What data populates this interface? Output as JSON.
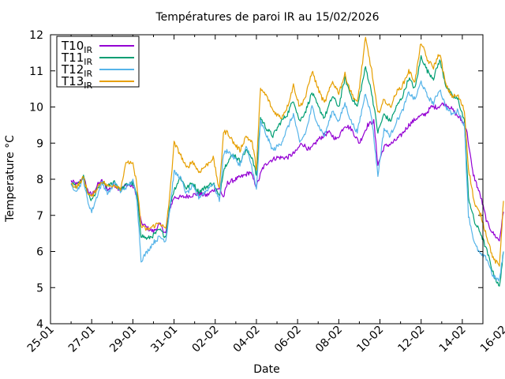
{
  "chart_data": {
    "type": "line",
    "title": "Températures de paroi IR au 15/02/2026",
    "xlabel": "Date",
    "ylabel": "Temperature °C",
    "xlim": [
      0,
      21
    ],
    "ylim": [
      4,
      12
    ],
    "x_unit": "days since 25-01",
    "x_ticks": [
      {
        "x": 0,
        "label": "25-01"
      },
      {
        "x": 2,
        "label": "27-01"
      },
      {
        "x": 4,
        "label": "29-01"
      },
      {
        "x": 6,
        "label": "31-01"
      },
      {
        "x": 8,
        "label": "02-02"
      },
      {
        "x": 10,
        "label": "04-02"
      },
      {
        "x": 12,
        "label": "06-02"
      },
      {
        "x": 14,
        "label": "08-02"
      },
      {
        "x": 16,
        "label": "10-02"
      },
      {
        "x": 18,
        "label": "12-02"
      },
      {
        "x": 20,
        "label": "14-02"
      },
      {
        "x": 22,
        "label": "16-02"
      }
    ],
    "y_ticks": [
      4,
      5,
      6,
      7,
      8,
      9,
      10,
      11,
      12
    ],
    "grid": false,
    "legend_position": "top-left",
    "series": [
      {
        "name": "T10",
        "subscript": "IR",
        "color": "#9400d3",
        "x": [
          1.0,
          1.3,
          1.6,
          1.8,
          2.0,
          2.3,
          2.5,
          2.8,
          3.1,
          3.4,
          3.7,
          4.0,
          4.2,
          4.4,
          4.7,
          5.0,
          5.3,
          5.6,
          5.8,
          6.0,
          6.4,
          6.8,
          7.2,
          7.6,
          7.9,
          8.2,
          8.4,
          8.6,
          9.0,
          9.4,
          9.7,
          10.0,
          10.3,
          10.6,
          11.0,
          11.5,
          11.9,
          12.2,
          12.6,
          13.0,
          13.5,
          13.9,
          14.3,
          14.6,
          15.0,
          15.4,
          15.7,
          15.9,
          16.2,
          16.6,
          17.0,
          17.4,
          17.8,
          18.2,
          18.5,
          18.8,
          19.1,
          19.4,
          19.7,
          20.0,
          20.2,
          20.5,
          20.9,
          21.2,
          21.5,
          21.8,
          22.0
        ],
        "values": [
          7.95,
          7.85,
          8.05,
          7.7,
          7.55,
          7.85,
          7.95,
          7.7,
          7.85,
          7.7,
          7.85,
          7.8,
          7.55,
          6.8,
          6.65,
          6.55,
          6.75,
          6.5,
          7.2,
          7.5,
          7.5,
          7.55,
          7.6,
          7.55,
          7.7,
          7.75,
          7.5,
          7.9,
          8.0,
          8.1,
          8.2,
          7.8,
          8.3,
          8.5,
          8.6,
          8.6,
          8.75,
          9.0,
          8.8,
          9.1,
          9.3,
          9.1,
          9.5,
          9.4,
          9.0,
          9.5,
          9.6,
          8.4,
          8.9,
          9.0,
          9.2,
          9.5,
          9.7,
          9.8,
          10.0,
          10.0,
          10.1,
          10.0,
          9.8,
          9.6,
          9.4,
          8.2,
          7.5,
          6.8,
          6.5,
          6.3,
          7.1
        ]
      },
      {
        "name": "T11",
        "subscript": "IR",
        "color": "#009e73",
        "x": [
          1.0,
          1.3,
          1.6,
          1.8,
          2.0,
          2.3,
          2.5,
          2.8,
          3.1,
          3.4,
          3.7,
          4.0,
          4.2,
          4.4,
          4.7,
          5.0,
          5.3,
          5.6,
          5.8,
          6.0,
          6.3,
          6.6,
          6.9,
          7.2,
          7.6,
          7.9,
          8.2,
          8.4,
          8.6,
          8.9,
          9.2,
          9.5,
          9.8,
          10.0,
          10.2,
          10.5,
          10.8,
          11.2,
          11.5,
          11.8,
          12.1,
          12.4,
          12.7,
          13.0,
          13.3,
          13.7,
          14.0,
          14.3,
          14.6,
          14.9,
          15.3,
          15.6,
          15.9,
          16.2,
          16.5,
          16.8,
          17.1,
          17.4,
          17.7,
          18.0,
          18.3,
          18.6,
          18.9,
          19.2,
          19.5,
          19.8,
          20.1,
          20.3,
          20.6,
          20.9,
          21.2,
          21.5,
          21.8,
          22.0
        ],
        "values": [
          7.9,
          7.8,
          8.05,
          7.6,
          7.4,
          7.75,
          7.9,
          7.8,
          7.95,
          7.7,
          7.85,
          7.9,
          7.55,
          6.45,
          6.35,
          6.45,
          6.6,
          6.4,
          7.3,
          7.7,
          8.05,
          7.75,
          7.9,
          7.65,
          7.8,
          7.9,
          7.5,
          8.25,
          8.5,
          8.7,
          8.5,
          8.8,
          8.6,
          8.1,
          9.7,
          9.4,
          9.2,
          9.6,
          9.8,
          10.2,
          9.6,
          9.9,
          10.4,
          10.0,
          9.7,
          10.3,
          10.0,
          10.8,
          10.3,
          10.0,
          11.1,
          10.4,
          9.3,
          9.8,
          9.6,
          10.0,
          10.3,
          10.8,
          10.5,
          11.4,
          11.0,
          10.8,
          11.3,
          10.6,
          10.3,
          10.2,
          9.6,
          7.5,
          6.8,
          6.5,
          6.0,
          5.4,
          5.0,
          6.0
        ]
      },
      {
        "name": "T12",
        "subscript": "IR",
        "color": "#56b4e9",
        "x": [
          1.0,
          1.3,
          1.6,
          1.8,
          2.0,
          2.3,
          2.5,
          2.8,
          3.1,
          3.4,
          3.7,
          4.0,
          4.2,
          4.4,
          4.7,
          5.0,
          5.3,
          5.6,
          5.8,
          6.0,
          6.3,
          6.6,
          6.9,
          7.2,
          7.6,
          7.9,
          8.2,
          8.4,
          8.6,
          8.9,
          9.2,
          9.5,
          9.8,
          10.0,
          10.2,
          10.5,
          10.8,
          11.2,
          11.5,
          11.8,
          12.1,
          12.4,
          12.7,
          13.0,
          13.3,
          13.7,
          14.0,
          14.3,
          14.6,
          14.9,
          15.3,
          15.6,
          15.9,
          16.2,
          16.5,
          16.8,
          17.1,
          17.4,
          17.7,
          18.0,
          18.3,
          18.6,
          18.9,
          19.2,
          19.5,
          19.8,
          20.1,
          20.3,
          20.6,
          20.9,
          21.2,
          21.5,
          21.8,
          22.0
        ],
        "values": [
          7.8,
          7.7,
          8.0,
          7.4,
          7.1,
          7.6,
          7.9,
          7.6,
          7.9,
          7.65,
          7.8,
          7.95,
          7.45,
          5.75,
          6.0,
          6.25,
          6.4,
          6.3,
          7.2,
          8.2,
          8.05,
          7.6,
          7.8,
          7.5,
          7.7,
          7.9,
          7.4,
          8.7,
          8.8,
          8.6,
          8.4,
          8.9,
          8.3,
          7.7,
          9.6,
          9.2,
          8.8,
          9.0,
          9.4,
          9.8,
          9.0,
          9.3,
          10.0,
          9.5,
          9.2,
          9.9,
          9.6,
          10.1,
          9.6,
          9.3,
          10.4,
          9.7,
          8.1,
          9.4,
          9.2,
          9.6,
          9.9,
          10.4,
          10.2,
          10.7,
          10.3,
          10.1,
          10.5,
          10.0,
          9.8,
          9.9,
          9.5,
          7.0,
          6.2,
          5.9,
          5.8,
          5.3,
          5.2,
          6.0
        ]
      },
      {
        "name": "T13",
        "subscript": "IR",
        "color": "#e69f00",
        "x": [
          1.0,
          1.3,
          1.6,
          1.8,
          2.0,
          2.3,
          2.5,
          2.8,
          3.1,
          3.4,
          3.7,
          4.0,
          4.2,
          4.4,
          4.7,
          5.0,
          5.3,
          5.6,
          5.8,
          6.0,
          6.3,
          6.6,
          6.9,
          7.2,
          7.6,
          7.9,
          8.2,
          8.4,
          8.6,
          8.9,
          9.2,
          9.5,
          9.8,
          10.0,
          10.2,
          10.5,
          10.8,
          11.2,
          11.5,
          11.8,
          12.1,
          12.4,
          12.7,
          13.0,
          13.3,
          13.7,
          14.0,
          14.3,
          14.6,
          14.9,
          15.3,
          15.6,
          15.9,
          16.2,
          16.5,
          16.8,
          17.1,
          17.4,
          17.7,
          18.0,
          18.3,
          18.6,
          18.9,
          19.2,
          19.5,
          19.8,
          20.1,
          20.3,
          20.6,
          20.9,
          21.2,
          21.5,
          21.8,
          22.0
        ],
        "values": [
          7.85,
          7.8,
          8.05,
          7.65,
          7.5,
          7.8,
          7.95,
          7.8,
          7.85,
          7.75,
          8.5,
          8.4,
          7.85,
          6.7,
          6.6,
          6.7,
          6.8,
          6.6,
          7.6,
          9.0,
          8.7,
          8.3,
          8.5,
          8.2,
          8.4,
          8.6,
          7.7,
          9.3,
          9.3,
          9.0,
          8.8,
          9.2,
          9.0,
          8.3,
          10.5,
          10.3,
          9.9,
          9.7,
          10.0,
          10.6,
          10.0,
          10.3,
          11.0,
          10.5,
          10.1,
          10.7,
          10.4,
          10.9,
          10.4,
          10.1,
          11.9,
          11.0,
          9.8,
          10.2,
          10.0,
          10.4,
          10.6,
          11.0,
          10.7,
          11.8,
          11.3,
          11.1,
          11.5,
          10.6,
          10.3,
          10.3,
          9.9,
          8.3,
          7.3,
          7.0,
          6.4,
          5.8,
          5.6,
          7.4
        ]
      }
    ]
  }
}
